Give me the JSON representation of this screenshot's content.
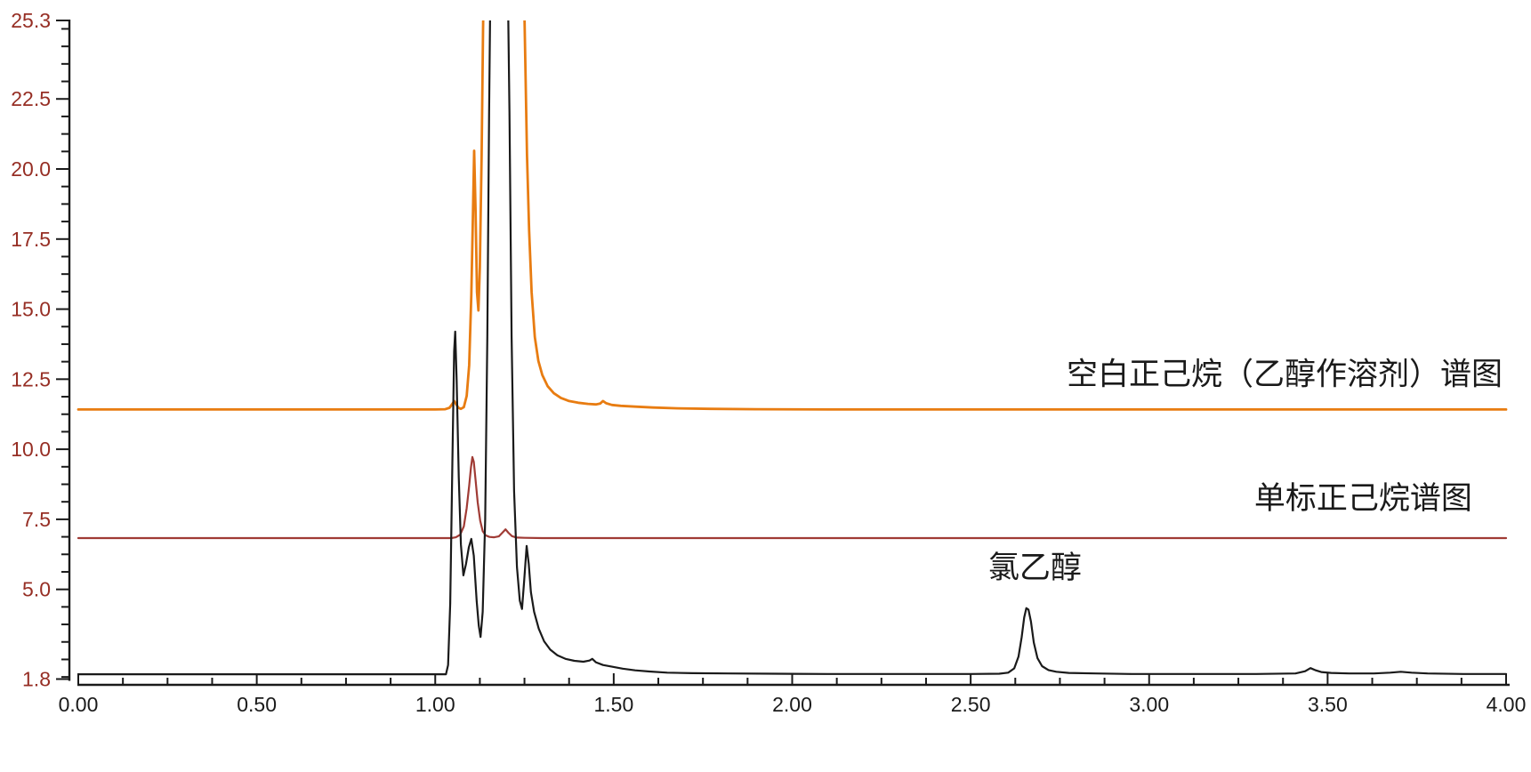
{
  "chart_data": {
    "type": "line",
    "title": "",
    "xlabel": "",
    "ylabel": "",
    "xlim": [
      0.0,
      4.0
    ],
    "ylim": [
      1.8,
      25.3
    ],
    "grid": false,
    "legend_position": "none",
    "background_color": "#ffffff",
    "axis_color": "#1a1a1a",
    "x_axis": {
      "major_ticks": [
        0.0,
        0.5,
        1.0,
        1.5,
        2.0,
        2.5,
        3.0,
        3.5,
        4.0
      ],
      "major_labels": [
        "0.00",
        "0.50",
        "1.00",
        "1.50",
        "2.00",
        "2.50",
        "3.00",
        "3.50",
        "4.00"
      ],
      "minor_tick_interval": 0.125,
      "label_color": "#1a1a1a"
    },
    "y_axis": {
      "major_ticks": [
        1.8,
        5.0,
        7.5,
        10.0,
        12.5,
        15.0,
        17.5,
        20.0,
        22.5,
        25.3
      ],
      "major_labels": [
        "1.8",
        "5.0",
        "7.5",
        "10.0",
        "12.5",
        "15.0",
        "17.5",
        "20.0",
        "22.5",
        "25.3"
      ],
      "minor_tick_interval": 0.625,
      "label_color": "#962e24"
    },
    "series": [
      {
        "name": "blank-hexane-ethanol-solvent-trace",
        "label": "空白正己烷（乙醇作溶剂）谱图",
        "color": "#e87c11",
        "stroke_width": 2.8,
        "baseline": 11.42,
        "clipped_above": 25.3,
        "points": [
          [
            0,
            11.42
          ],
          [
            0.4,
            11.42
          ],
          [
            0.8,
            11.42
          ],
          [
            1,
            11.42
          ],
          [
            1.028,
            11.43
          ],
          [
            1.04,
            11.48
          ],
          [
            1.048,
            11.62
          ],
          [
            1.053,
            11.72
          ],
          [
            1.058,
            11.62
          ],
          [
            1.065,
            11.48
          ],
          [
            1.072,
            11.44
          ],
          [
            1.08,
            11.5
          ],
          [
            1.088,
            11.9
          ],
          [
            1.095,
            13
          ],
          [
            1.101,
            15.5
          ],
          [
            1.105,
            18
          ],
          [
            1.109,
            20.65
          ],
          [
            1.113,
            18.5
          ],
          [
            1.117,
            15.6
          ],
          [
            1.121,
            14.95
          ],
          [
            1.125,
            16.5
          ],
          [
            1.13,
            20.5
          ],
          [
            1.134,
            25
          ],
          [
            1.137,
            27.5
          ],
          [
            1.247,
            27.5
          ],
          [
            1.252,
            24
          ],
          [
            1.257,
            20.5
          ],
          [
            1.263,
            17.8
          ],
          [
            1.27,
            15.6
          ],
          [
            1.279,
            14
          ],
          [
            1.289,
            13.15
          ],
          [
            1.3,
            12.65
          ],
          [
            1.315,
            12.25
          ],
          [
            1.332,
            12
          ],
          [
            1.352,
            11.83
          ],
          [
            1.375,
            11.72
          ],
          [
            1.4,
            11.66
          ],
          [
            1.428,
            11.62
          ],
          [
            1.45,
            11.6
          ],
          [
            1.462,
            11.63
          ],
          [
            1.47,
            11.72
          ],
          [
            1.479,
            11.64
          ],
          [
            1.495,
            11.58
          ],
          [
            1.52,
            11.55
          ],
          [
            1.56,
            11.52
          ],
          [
            1.61,
            11.49
          ],
          [
            1.68,
            11.46
          ],
          [
            1.77,
            11.44
          ],
          [
            1.9,
            11.43
          ],
          [
            2.1,
            11.42
          ],
          [
            2.5,
            11.42
          ],
          [
            3,
            11.42
          ],
          [
            3.5,
            11.42
          ],
          [
            4,
            11.42
          ]
        ]
      },
      {
        "name": "single-standard-hexane-trace",
        "label": "单标正己烷谱图",
        "color": "#a03b35",
        "stroke_width": 2.2,
        "baseline": 6.83,
        "peak_apex": {
          "time": 1.104,
          "value": 9.72
        },
        "points": [
          [
            0,
            6.83
          ],
          [
            0.4,
            6.83
          ],
          [
            0.8,
            6.83
          ],
          [
            1,
            6.83
          ],
          [
            1.045,
            6.83
          ],
          [
            1.058,
            6.86
          ],
          [
            1.07,
            6.95
          ],
          [
            1.08,
            7.25
          ],
          [
            1.088,
            7.9
          ],
          [
            1.095,
            8.7
          ],
          [
            1.1,
            9.35
          ],
          [
            1.104,
            9.72
          ],
          [
            1.108,
            9.55
          ],
          [
            1.113,
            8.9
          ],
          [
            1.119,
            8.1
          ],
          [
            1.126,
            7.45
          ],
          [
            1.133,
            7.08
          ],
          [
            1.141,
            6.93
          ],
          [
            1.152,
            6.87
          ],
          [
            1.165,
            6.86
          ],
          [
            1.178,
            6.89
          ],
          [
            1.19,
            7.05
          ],
          [
            1.197,
            7.14
          ],
          [
            1.205,
            7.02
          ],
          [
            1.215,
            6.9
          ],
          [
            1.228,
            6.85
          ],
          [
            1.25,
            6.84
          ],
          [
            1.3,
            6.83
          ],
          [
            1.6,
            6.83
          ],
          [
            2,
            6.83
          ],
          [
            2.5,
            6.83
          ],
          [
            3,
            6.83
          ],
          [
            3.5,
            6.83
          ],
          [
            4,
            6.83
          ]
        ]
      },
      {
        "name": "sample-chloroethanol-trace",
        "label": "氯乙醇",
        "color": "#1a1a1a",
        "stroke_width": 2.2,
        "baseline": 1.97,
        "clipped_above": 25.3,
        "peak_apex": {
          "time": 2.656,
          "value": 4.33
        },
        "points": [
          [
            0,
            1.97
          ],
          [
            0.3,
            1.97
          ],
          [
            0.6,
            1.97
          ],
          [
            0.9,
            1.97
          ],
          [
            1.03,
            1.97
          ],
          [
            1.036,
            2.3
          ],
          [
            1.042,
            4.5
          ],
          [
            1.048,
            9.5
          ],
          [
            1.053,
            13.5
          ],
          [
            1.056,
            14.2
          ],
          [
            1.06,
            12.5
          ],
          [
            1.066,
            9
          ],
          [
            1.072,
            6.6
          ],
          [
            1.079,
            5.5
          ],
          [
            1.086,
            5.9
          ],
          [
            1.094,
            6.5
          ],
          [
            1.101,
            6.8
          ],
          [
            1.108,
            6.2
          ],
          [
            1.116,
            4.6
          ],
          [
            1.122,
            3.7
          ],
          [
            1.127,
            3.3
          ],
          [
            1.133,
            4.2
          ],
          [
            1.14,
            7.5
          ],
          [
            1.146,
            14
          ],
          [
            1.151,
            22
          ],
          [
            1.155,
            27
          ],
          [
            1.203,
            27
          ],
          [
            1.208,
            22
          ],
          [
            1.214,
            14
          ],
          [
            1.221,
            8.5
          ],
          [
            1.229,
            5.8
          ],
          [
            1.237,
            4.6
          ],
          [
            1.243,
            4.3
          ],
          [
            1.249,
            5.3
          ],
          [
            1.256,
            6.55
          ],
          [
            1.262,
            5.9
          ],
          [
            1.268,
            4.9
          ],
          [
            1.277,
            4.2
          ],
          [
            1.29,
            3.6
          ],
          [
            1.305,
            3.15
          ],
          [
            1.322,
            2.85
          ],
          [
            1.342,
            2.65
          ],
          [
            1.365,
            2.52
          ],
          [
            1.39,
            2.45
          ],
          [
            1.415,
            2.42
          ],
          [
            1.432,
            2.46
          ],
          [
            1.44,
            2.52
          ],
          [
            1.45,
            2.4
          ],
          [
            1.47,
            2.3
          ],
          [
            1.495,
            2.24
          ],
          [
            1.525,
            2.17
          ],
          [
            1.56,
            2.11
          ],
          [
            1.6,
            2.07
          ],
          [
            1.65,
            2.03
          ],
          [
            1.72,
            2.01
          ],
          [
            1.82,
            2
          ],
          [
            1.95,
            1.99
          ],
          [
            2.1,
            1.98
          ],
          [
            2.3,
            1.98
          ],
          [
            2.5,
            1.98
          ],
          [
            2.58,
            1.99
          ],
          [
            2.605,
            2.03
          ],
          [
            2.622,
            2.18
          ],
          [
            2.634,
            2.6
          ],
          [
            2.643,
            3.3
          ],
          [
            2.65,
            4
          ],
          [
            2.656,
            4.33
          ],
          [
            2.662,
            4.28
          ],
          [
            2.669,
            3.85
          ],
          [
            2.677,
            3.1
          ],
          [
            2.687,
            2.55
          ],
          [
            2.7,
            2.26
          ],
          [
            2.718,
            2.12
          ],
          [
            2.74,
            2.06
          ],
          [
            2.775,
            2.02
          ],
          [
            2.85,
            2
          ],
          [
            2.95,
            1.98
          ],
          [
            3.1,
            1.98
          ],
          [
            3.3,
            1.98
          ],
          [
            3.41,
            2
          ],
          [
            3.437,
            2.08
          ],
          [
            3.452,
            2.19
          ],
          [
            3.465,
            2.12
          ],
          [
            3.482,
            2.05
          ],
          [
            3.51,
            2.02
          ],
          [
            3.56,
            2
          ],
          [
            3.63,
            2
          ],
          [
            3.675,
            2.03
          ],
          [
            3.705,
            2.06
          ],
          [
            3.735,
            2.03
          ],
          [
            3.78,
            2
          ],
          [
            3.88,
            1.98
          ],
          [
            4,
            1.98
          ]
        ]
      }
    ],
    "annotations": [
      {
        "name": "annotation-blank-hexane",
        "text": "空白正己烷（乙醇作溶剂）谱图",
        "x": 3.99,
        "y": 12.3,
        "anchor": "end",
        "color": "#1a1a1a"
      },
      {
        "name": "annotation-single-standard-hexane",
        "text": "单标正己烷谱图",
        "x": 3.905,
        "y": 7.88,
        "anchor": "end",
        "color": "#1a1a1a"
      },
      {
        "name": "annotation-chloroethanol-peak",
        "text": "氯乙醇",
        "x": 2.68,
        "y": 5.4,
        "anchor": "middle",
        "color": "#1a1a1a"
      }
    ]
  }
}
